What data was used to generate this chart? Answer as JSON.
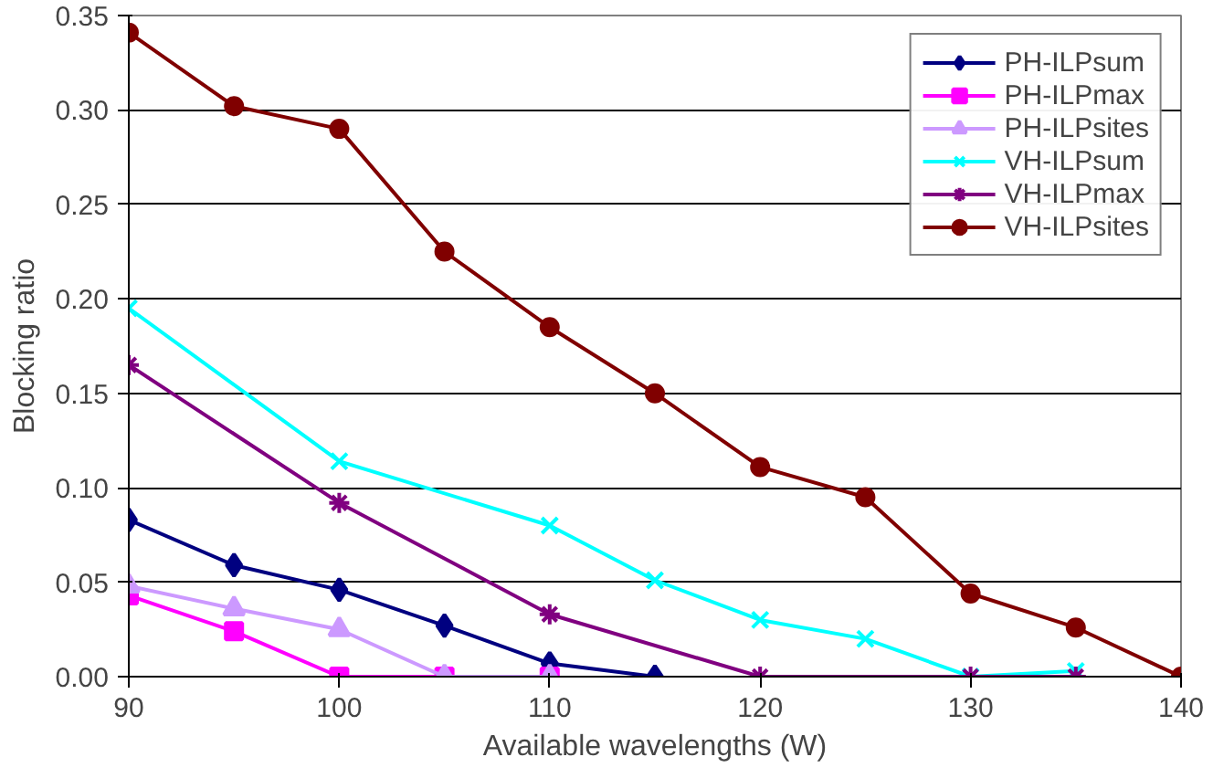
{
  "chart_data": {
    "type": "line",
    "xlabel": "Available wavelengths (W)",
    "ylabel": "Blocking ratio",
    "xlim": [
      90,
      140
    ],
    "xticks": [
      90,
      100,
      110,
      120,
      130,
      140
    ],
    "ylim": [
      0,
      0.35
    ],
    "yticks": [
      {
        "value": 0,
        "label": "0.00"
      },
      {
        "value": 0.05,
        "label": "0.05"
      },
      {
        "value": 0.1,
        "label": "0.10"
      },
      {
        "value": 0.15,
        "label": "0.15"
      },
      {
        "value": 0.2,
        "label": "0.20"
      },
      {
        "value": 0.25,
        "label": "0.25"
      },
      {
        "value": 0.3,
        "label": "0.30"
      },
      {
        "value": 0.35,
        "label": "0.35"
      }
    ],
    "grid": "y",
    "legend": "top right",
    "series": [
      {
        "name": "PH-ILPsum",
        "color": "#000080",
        "marker": "diamond",
        "x": [
          90,
          95,
          100,
          105,
          110,
          115
        ],
        "values": [
          0.083,
          0.059,
          0.046,
          0.027,
          0.007,
          0.0
        ]
      },
      {
        "name": "PH-ILPmax",
        "color": "#ff00ff",
        "marker": "square",
        "x": [
          90,
          95,
          100,
          105,
          110
        ],
        "values": [
          0.043,
          0.024,
          0.0,
          0.0,
          0.0
        ]
      },
      {
        "name": "PH-ILPsites",
        "color": "#cc99ff",
        "marker": "triangle",
        "x": [
          90,
          95,
          100,
          105,
          110
        ],
        "values": [
          0.048,
          0.036,
          0.025,
          0.0,
          0.0
        ]
      },
      {
        "name": "VH-ILPsum",
        "color": "#00ffff",
        "marker": "x",
        "x": [
          90,
          100,
          110,
          115,
          120,
          125,
          130,
          135
        ],
        "values": [
          0.195,
          0.114,
          0.08,
          0.051,
          0.03,
          0.02,
          0.0,
          0.003
        ]
      },
      {
        "name": "VH-ILPmax",
        "color": "#800080",
        "marker": "cross",
        "x": [
          90,
          100,
          110,
          120,
          130,
          135
        ],
        "values": [
          0.165,
          0.092,
          0.033,
          0.0,
          0.0,
          0.0
        ]
      },
      {
        "name": "VH-ILPsites",
        "color": "#800000",
        "marker": "circle",
        "x": [
          90,
          95,
          100,
          105,
          110,
          115,
          120,
          125,
          130,
          135,
          140
        ],
        "values": [
          0.341,
          0.302,
          0.29,
          0.225,
          0.185,
          0.15,
          0.111,
          0.095,
          0.044,
          0.026,
          0.0
        ]
      }
    ]
  }
}
